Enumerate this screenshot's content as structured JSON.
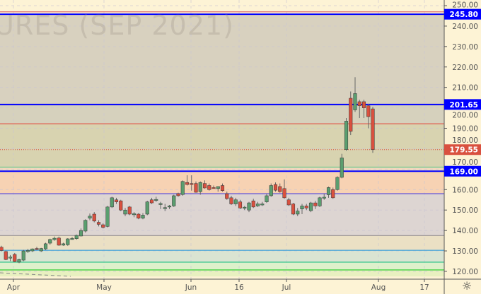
{
  "watermark": "URES (SEP 2021)",
  "chart_data": {
    "type": "candlestick",
    "ylim": [
      117,
      252
    ],
    "yticks": [
      120,
      130,
      140,
      150,
      160,
      170,
      180,
      190,
      200,
      210,
      220,
      230,
      240,
      250
    ],
    "ytick_labels": [
      "120.00",
      "130.00",
      "140.00",
      "150.00",
      "160.00",
      "170.00",
      "180.00",
      "190.00",
      "200.00",
      "210.00",
      "220.00",
      "230.00",
      "240.00",
      "250.00"
    ],
    "xtick_labels": [
      "Apr",
      "May",
      "Jun",
      "16",
      "Jul",
      "Aug",
      "17"
    ],
    "grid": true,
    "ohlc": [
      [
        131.8,
        132.5,
        129.8,
        130.2
      ],
      [
        129.7,
        130.2,
        125.5,
        125.8
      ],
      [
        127,
        128,
        125,
        127
      ],
      [
        128.3,
        129,
        124.5,
        124.8
      ],
      [
        124.5,
        126.2,
        124,
        125.8
      ],
      [
        125.5,
        130.5,
        125,
        130
      ],
      [
        130,
        131,
        129,
        130.2
      ],
      [
        130,
        131.2,
        129.5,
        131
      ],
      [
        131.2,
        132,
        130.5,
        130.8
      ],
      [
        130,
        131.5,
        129.5,
        131.2
      ],
      [
        131,
        134,
        130.5,
        133.5
      ],
      [
        133.8,
        136,
        133,
        135.6
      ],
      [
        135.5,
        137,
        135,
        136.2
      ],
      [
        136.3,
        137,
        132.5,
        132.8
      ],
      [
        132.8,
        134,
        132.5,
        133.5
      ],
      [
        133,
        136.2,
        132.5,
        135.9
      ],
      [
        136,
        136.8,
        135.5,
        136.1
      ],
      [
        136,
        138,
        135.5,
        137.6
      ],
      [
        137.3,
        141,
        137,
        140
      ],
      [
        139.7,
        145.5,
        139,
        145
      ],
      [
        146,
        148.3,
        145,
        147
      ],
      [
        148,
        149,
        144,
        144.6
      ],
      [
        144,
        145,
        142,
        143
      ],
      [
        142.8,
        143.5,
        141,
        141.5
      ],
      [
        142,
        152,
        141.5,
        151.5
      ],
      [
        151.5,
        156.5,
        151,
        156
      ],
      [
        155,
        156,
        153,
        154
      ],
      [
        154.5,
        155,
        149.5,
        150
      ],
      [
        148,
        151,
        147,
        150
      ],
      [
        151.5,
        152,
        147.5,
        148
      ],
      [
        148,
        149,
        146.5,
        148.2
      ],
      [
        148,
        148.5,
        145.5,
        146
      ],
      [
        146,
        148.5,
        145.5,
        147.5
      ],
      [
        148,
        154.5,
        147.5,
        154
      ],
      [
        155,
        156,
        153,
        153.5
      ],
      [
        155,
        156.5,
        154,
        155.2
      ],
      [
        153,
        154,
        150.5,
        153.2
      ],
      [
        151,
        153,
        149.5,
        151.2
      ],
      [
        151.8,
        152.5,
        150.5,
        152
      ],
      [
        152,
        157.5,
        151.5,
        157
      ],
      [
        158,
        158.5,
        156.5,
        157
      ],
      [
        157.6,
        164.5,
        157,
        164
      ],
      [
        163.5,
        167,
        162,
        162.5
      ],
      [
        163,
        167,
        159.5,
        162.5
      ],
      [
        163,
        164,
        158.5,
        158.7
      ],
      [
        159,
        164,
        157.5,
        163.5
      ],
      [
        163,
        164.5,
        160.5,
        160.8
      ],
      [
        162,
        163,
        159.5,
        160
      ],
      [
        161,
        162,
        160.5,
        160.8
      ],
      [
        160.5,
        161.5,
        159,
        161.5
      ],
      [
        162,
        163,
        159,
        159.5
      ],
      [
        158,
        159,
        155,
        155.6
      ],
      [
        156,
        157,
        152.5,
        153
      ],
      [
        153,
        156,
        152,
        155
      ],
      [
        154,
        155,
        150.5,
        151
      ],
      [
        151.4,
        152,
        150,
        151.4
      ],
      [
        150,
        154,
        149,
        153.5
      ],
      [
        154.5,
        155.5,
        151,
        151.5
      ],
      [
        152,
        154,
        151.5,
        153
      ],
      [
        153,
        154,
        152,
        153
      ],
      [
        154,
        158,
        153.5,
        157
      ],
      [
        157,
        163,
        156.5,
        162
      ],
      [
        162.5,
        163.5,
        159,
        159.7
      ],
      [
        161.5,
        163,
        158.5,
        159
      ],
      [
        160.5,
        165,
        155.5,
        156
      ],
      [
        155,
        156,
        152,
        152.5
      ],
      [
        153,
        153.5,
        147.5,
        148
      ],
      [
        148,
        151,
        147,
        149.5
      ],
      [
        150.5,
        153,
        148,
        152
      ],
      [
        152,
        153,
        150,
        151
      ],
      [
        149.7,
        154,
        149,
        153.5
      ],
      [
        153.5,
        154.5,
        150.5,
        152
      ],
      [
        152,
        156.5,
        151.5,
        156
      ],
      [
        156.3,
        158,
        155,
        156.3
      ],
      [
        157.5,
        161.5,
        156,
        161
      ],
      [
        160,
        161,
        155.5,
        156
      ],
      [
        160,
        166.5,
        159.5,
        166
      ],
      [
        166,
        177.5,
        165.5,
        175.5
      ],
      [
        179.6,
        195,
        179,
        193.5
      ],
      [
        204.7,
        208,
        186.7,
        188.5
      ],
      [
        199,
        215,
        198,
        207
      ],
      [
        203,
        204,
        195,
        201
      ],
      [
        203,
        204,
        195,
        200
      ],
      [
        201,
        202,
        190,
        195.7
      ],
      [
        199.5,
        200.5,
        178,
        179.55
      ]
    ],
    "levels": [
      {
        "value": 247.0,
        "color": "#e07a7a"
      },
      {
        "value": 245.8,
        "color": "#0000ff",
        "label": "245.80"
      },
      {
        "value": 201.65,
        "color": "#0000ff",
        "label": "201.65"
      },
      {
        "value": 192.2,
        "color": "#e06050"
      },
      {
        "value": 171.0,
        "color": "#6cc890"
      },
      {
        "value": 169.0,
        "color": "#0000ff",
        "label": "169.00"
      },
      {
        "value": 158.0,
        "color": "#6a5cd8"
      },
      {
        "value": 137.5,
        "color": "#a09a98"
      },
      {
        "value": 130.3,
        "color": "#50a8d8"
      },
      {
        "value": 124.5,
        "color": "#40c890"
      },
      {
        "value": 120.7,
        "color": "#40d040"
      }
    ],
    "last_price": {
      "value": 179.55,
      "label": "179.55",
      "color": "#d9503f"
    },
    "colors": {
      "up": "#5a9e6f",
      "down": "#d9503f"
    }
  }
}
